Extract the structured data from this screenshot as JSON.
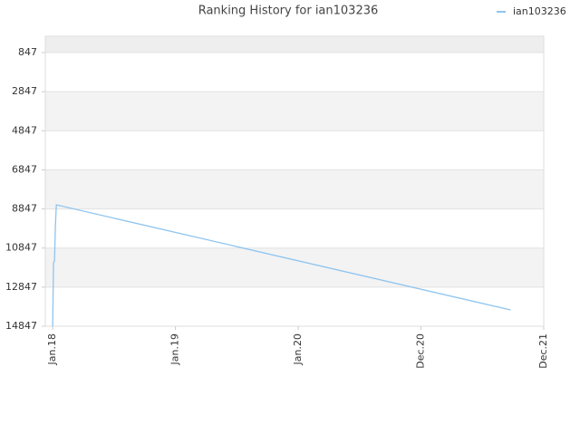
{
  "chart_data": {
    "type": "line",
    "title": "Ranking History for ian103236",
    "x": [
      0,
      0.007,
      0.015,
      0.022,
      0.03,
      3.73
    ],
    "series": [
      {
        "name": "ian103236",
        "color": "#8ec4ef",
        "values": [
          14847,
          11600,
          11500,
          9750,
          8636,
          14013
        ]
      }
    ],
    "xlim": [
      -0.06,
      4
    ],
    "xticks": [
      {
        "value": 0,
        "label": "Jan.18"
      },
      {
        "value": 1,
        "label": "Jan.19"
      },
      {
        "value": 2,
        "label": "Jan.20"
      },
      {
        "value": 3,
        "label": "Dec.20"
      },
      {
        "value": 4,
        "label": "Dec.21"
      }
    ],
    "ylim": [
      14847,
      12
    ],
    "yticks": [
      847,
      2847,
      4847,
      6847,
      8847,
      10847,
      12847,
      14847
    ],
    "y_inverted": true,
    "grid": true,
    "legend": "top-right"
  }
}
